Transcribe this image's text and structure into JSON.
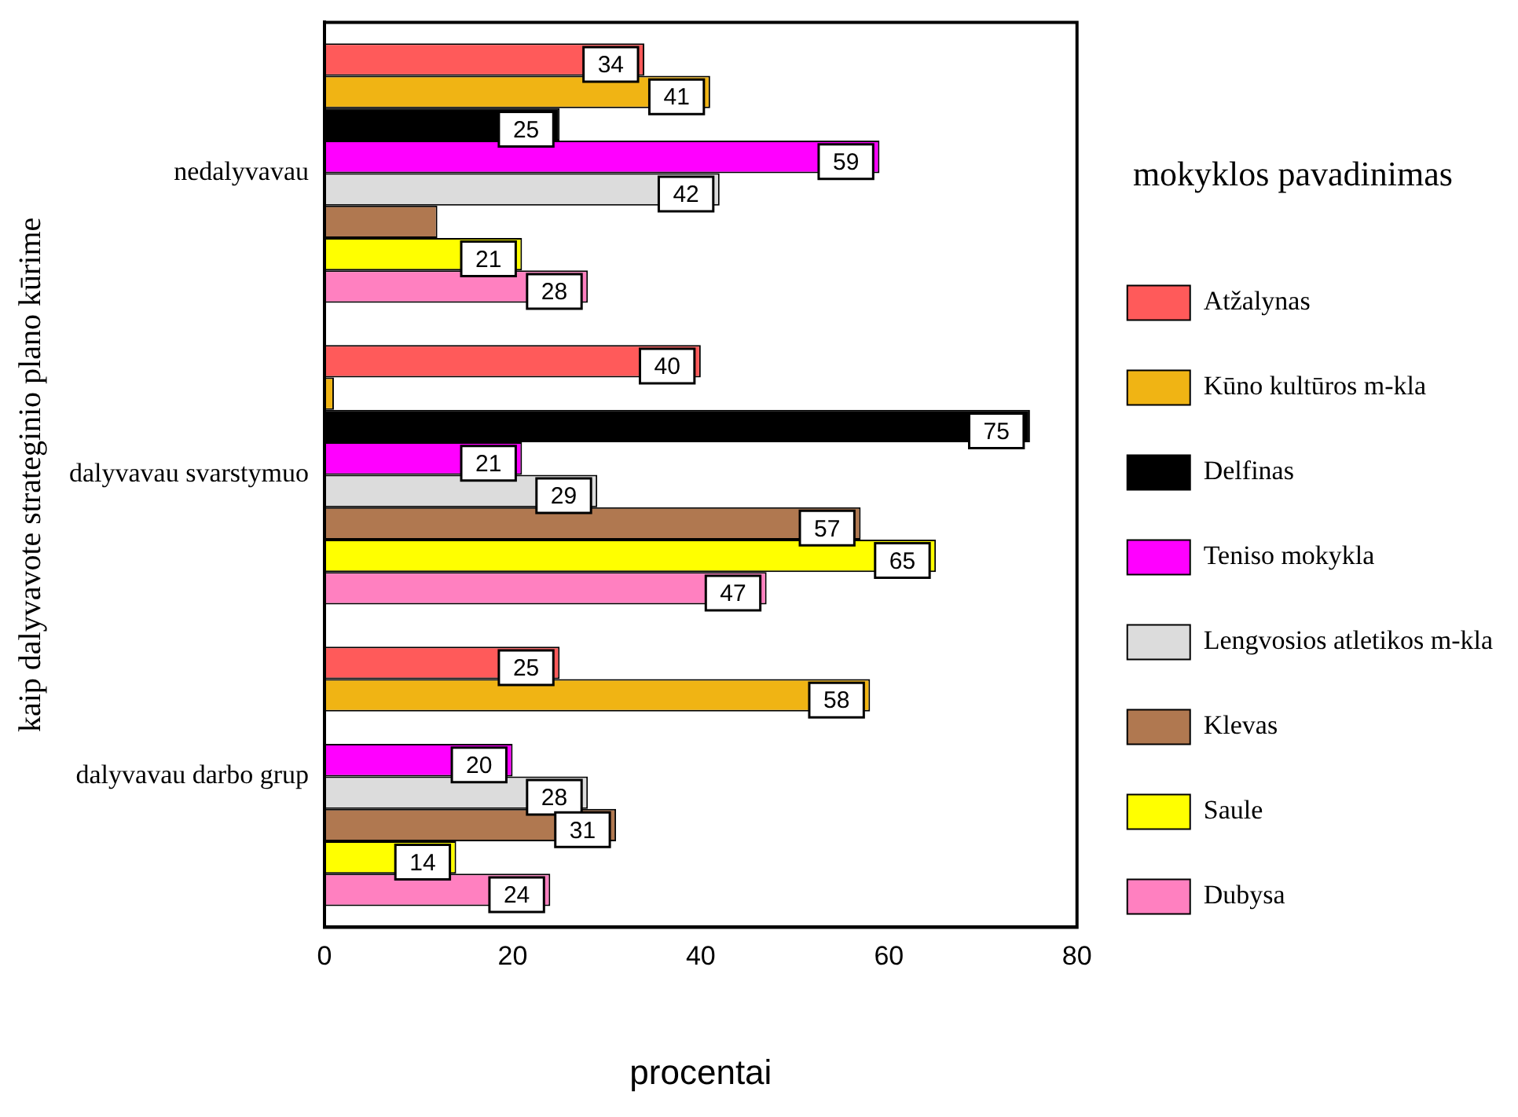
{
  "chart_data": {
    "type": "bar",
    "orientation": "horizontal",
    "xlabel": "procentai",
    "ylabel": "kaip dalyvavote strateginio plano kūrime",
    "legend_title": "mokyklos pavadinimas",
    "legend": "right",
    "categories": [
      "nedalyvavau",
      "dalyvavau svarstymuo",
      "dalyvavau darbo grup"
    ],
    "xlim": [
      0,
      80
    ],
    "xticks": [
      0,
      20,
      40,
      60,
      80
    ],
    "series": [
      {
        "name": "Atžalynas",
        "color": "#ff5a5a",
        "values": [
          34,
          40,
          25
        ],
        "value_labels": [
          "34",
          "40",
          "25"
        ]
      },
      {
        "name": "Kūno kultūros m-kla",
        "color": "#f0b414",
        "values": [
          41,
          1,
          58
        ],
        "value_labels": [
          "41",
          null,
          "58"
        ]
      },
      {
        "name": "Delfinas",
        "color": "#000000",
        "values": [
          25,
          75,
          null
        ],
        "value_labels": [
          "25",
          "75",
          null
        ]
      },
      {
        "name": "Teniso mokykla",
        "color": "#ff00ff",
        "values": [
          59,
          21,
          20
        ],
        "value_labels": [
          "59",
          "21",
          "20"
        ]
      },
      {
        "name": "Lengvosios atletikos m-kla",
        "color": "#dcdcdc",
        "values": [
          42,
          29,
          28
        ],
        "value_labels": [
          "42",
          "29",
          "28"
        ]
      },
      {
        "name": "Klevas",
        "color": "#b07850",
        "values": [
          12,
          57,
          31
        ],
        "value_labels": [
          null,
          "57",
          "31"
        ]
      },
      {
        "name": "Saule",
        "color": "#ffff00",
        "values": [
          21,
          65,
          14
        ],
        "value_labels": [
          "21",
          "65",
          "14"
        ]
      },
      {
        "name": "Dubysa",
        "color": "#ff80c0",
        "values": [
          28,
          47,
          24
        ],
        "value_labels": [
          "28",
          "47",
          "24"
        ]
      }
    ]
  }
}
